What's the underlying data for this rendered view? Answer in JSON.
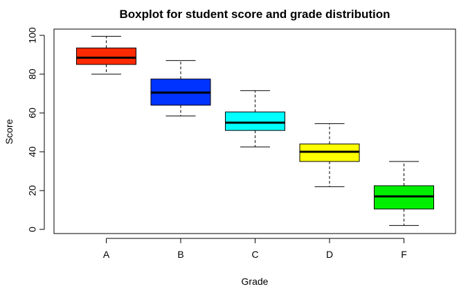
{
  "chart_data": {
    "type": "boxplot",
    "title": "Boxplot for student score and grade distribution",
    "xlabel": "Grade",
    "ylabel": "Score",
    "ylim": [
      0,
      100
    ],
    "yticks": [
      0,
      20,
      40,
      60,
      80,
      100
    ],
    "categories": [
      "A",
      "B",
      "C",
      "D",
      "F"
    ],
    "boxes": [
      {
        "category": "A",
        "min": 80,
        "q1": 85,
        "median": 88.5,
        "q3": 93.5,
        "max": 99.5,
        "color": "#ff2a00"
      },
      {
        "category": "B",
        "min": 58.5,
        "q1": 64,
        "median": 70.5,
        "q3": 77.5,
        "max": 87,
        "color": "#0033ff"
      },
      {
        "category": "C",
        "min": 42.5,
        "q1": 51,
        "median": 55,
        "q3": 60.5,
        "max": 71.5,
        "color": "#00ffff"
      },
      {
        "category": "D",
        "min": 22,
        "q1": 35,
        "median": 40,
        "q3": 44,
        "max": 54.5,
        "color": "#ffff00"
      },
      {
        "category": "F",
        "min": 2,
        "q1": 10.5,
        "median": 17,
        "q3": 22.5,
        "max": 35,
        "color": "#00ee00"
      }
    ],
    "grid": false,
    "legend": "none"
  }
}
